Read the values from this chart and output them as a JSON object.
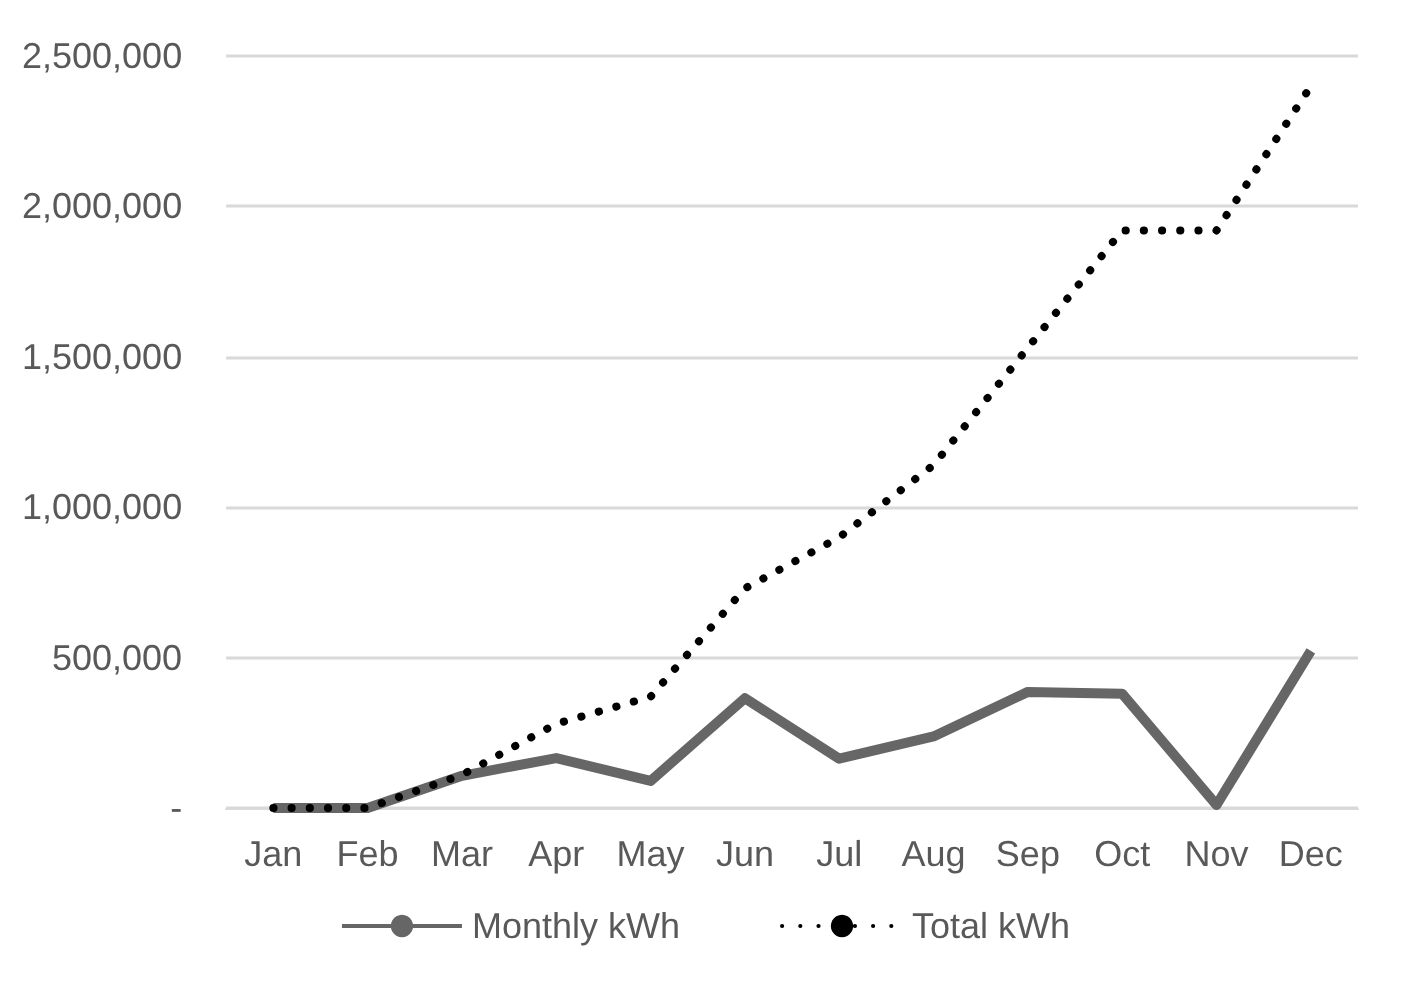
{
  "chart_data": {
    "type": "line",
    "categories": [
      "Jan",
      "Feb",
      "Mar",
      "Apr",
      "May",
      "Jun",
      "Jul",
      "Aug",
      "Sep",
      "Oct",
      "Nov",
      "Dec"
    ],
    "series": [
      {
        "name": "Monthly kWh",
        "color": "#666666",
        "line_style": "solid",
        "values": [
          0,
          0,
          107000,
          166000,
          90000,
          365000,
          164000,
          238000,
          386000,
          380000,
          10000,
          522000
        ]
      },
      {
        "name": "Total kWh",
        "color": "#000000",
        "line_style": "dotted",
        "values": [
          0,
          0,
          110000,
          280000,
          370000,
          730000,
          900000,
          1140000,
          1530000,
          1920000,
          1920000,
          2400000
        ]
      }
    ],
    "ylim": [
      0,
      2500000
    ],
    "yticks": [
      {
        "value": 0,
        "label": "-"
      },
      {
        "value": 500000,
        "label": "500,000"
      },
      {
        "value": 1000000,
        "label": "1,000,000"
      },
      {
        "value": 1500000,
        "label": "1,500,000"
      },
      {
        "value": 2000000,
        "label": "2,000,000"
      },
      {
        "value": 2500000,
        "label": "2,500,000"
      }
    ],
    "grid": "y",
    "legend": "bottom",
    "marker": "none"
  }
}
